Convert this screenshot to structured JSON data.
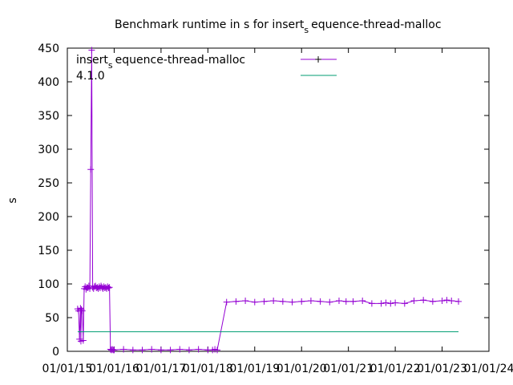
{
  "chart_data": {
    "type": "line",
    "title": "Benchmark runtime in s for insert_sequence-thread-malloc",
    "title_parts": {
      "prefix": "Benchmark runtime in s for insert",
      "sub": "s",
      "suffix": "equence-thread-malloc"
    },
    "ylabel": "s",
    "xlabel": "",
    "ylim": [
      0,
      450
    ],
    "yticks": [
      0,
      50,
      100,
      150,
      200,
      250,
      300,
      350,
      400,
      450
    ],
    "x_ticks": [
      {
        "t": 2015.0,
        "label": "01/01/15"
      },
      {
        "t": 2016.0,
        "label": "01/01/16"
      },
      {
        "t": 2017.0,
        "label": "01/01/17"
      },
      {
        "t": 2018.0,
        "label": "01/01/18"
      },
      {
        "t": 2019.0,
        "label": "01/01/19"
      },
      {
        "t": 2020.0,
        "label": "01/01/20"
      },
      {
        "t": 2021.0,
        "label": "01/01/21"
      },
      {
        "t": 2022.0,
        "label": "01/01/22"
      },
      {
        "t": 2023.0,
        "label": "01/01/23"
      },
      {
        "t": 2024.0,
        "label": "01/01/24"
      }
    ],
    "xlim": [
      2015.0,
      2024.0
    ],
    "grid": false,
    "legend_position": "top",
    "series": [
      {
        "name": "insert_sequence-thread-malloc",
        "name_parts": {
          "prefix": "insert",
          "sub": "s",
          "suffix": "equence-thread-malloc"
        },
        "color": "#9400d3",
        "marker": "plus",
        "x": [
          2015.22,
          2015.24,
          2015.26,
          2015.28,
          2015.29,
          2015.3,
          2015.32,
          2015.34,
          2015.36,
          2015.38,
          2015.4,
          2015.42,
          2015.44,
          2015.46,
          2015.48,
          2015.5,
          2015.52,
          2015.54,
          2015.56,
          2015.58,
          2015.6,
          2015.62,
          2015.64,
          2015.66,
          2015.68,
          2015.7,
          2015.72,
          2015.74,
          2015.76,
          2015.78,
          2015.8,
          2015.82,
          2015.84,
          2015.86,
          2015.88,
          2015.9,
          2015.92,
          2015.94,
          2015.96,
          2015.98,
          2016.0,
          2016.2,
          2016.4,
          2016.6,
          2016.8,
          2017.0,
          2017.2,
          2017.4,
          2017.6,
          2017.8,
          2018.0,
          2018.1,
          2018.15,
          2018.2,
          2018.4,
          2018.6,
          2018.8,
          2019.0,
          2019.2,
          2019.4,
          2019.6,
          2019.8,
          2020.0,
          2020.2,
          2020.4,
          2020.6,
          2020.8,
          2020.95,
          2021.1,
          2021.3,
          2021.5,
          2021.7,
          2021.8,
          2021.9,
          2022.0,
          2022.2,
          2022.4,
          2022.6,
          2022.8,
          2023.0,
          2023.1,
          2023.2,
          2023.35
        ],
        "y": [
          63,
          60,
          18,
          64,
          15,
          62,
          60,
          16,
          93,
          96,
          92,
          95,
          94,
          97,
          93,
          270,
          447,
          95,
          93,
          96,
          97,
          94,
          95,
          93,
          96,
          94,
          97,
          95,
          93,
          96,
          94,
          95,
          93,
          96,
          94,
          95,
          3,
          2,
          3,
          2,
          2,
          3,
          2,
          2,
          3,
          2,
          2,
          3,
          2,
          3,
          2,
          2,
          3,
          2,
          73,
          74,
          75,
          73,
          74,
          75,
          74,
          73,
          74,
          75,
          74,
          73,
          75,
          74,
          74,
          75,
          71,
          71,
          72,
          71,
          72,
          71,
          75,
          76,
          74,
          75,
          76,
          75,
          74
        ]
      },
      {
        "name": "4.1.0",
        "color": "#009e73",
        "marker": "none",
        "x": [
          2015.22,
          2023.35
        ],
        "y": [
          29,
          29
        ]
      }
    ]
  }
}
